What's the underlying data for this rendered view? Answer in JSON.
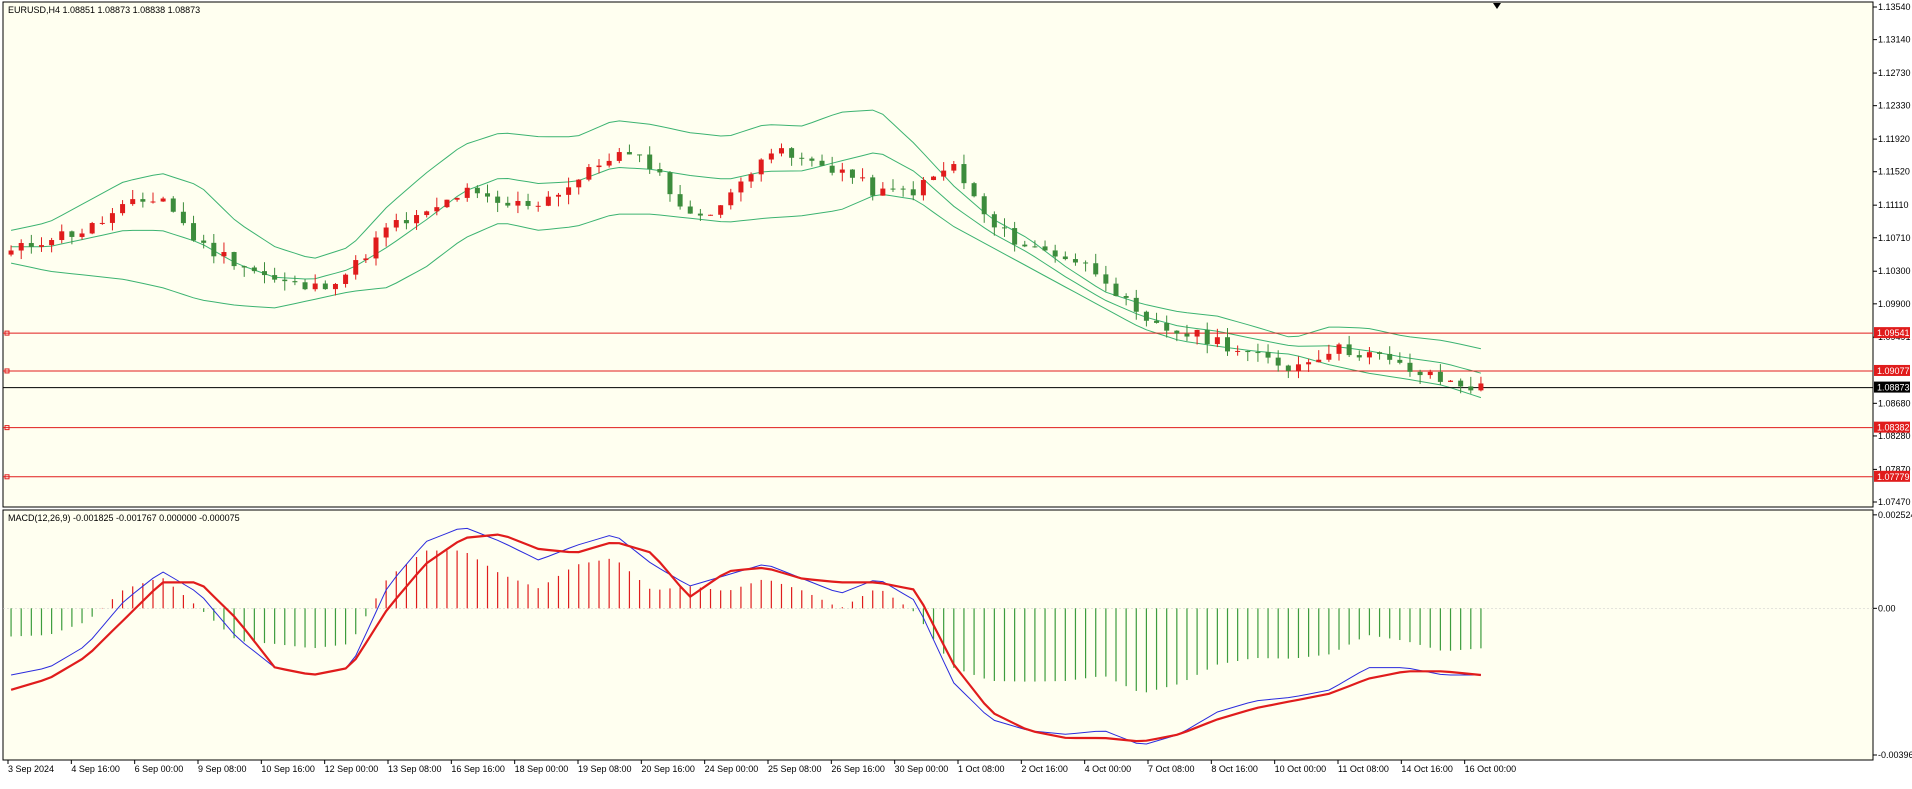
{
  "symbol_info": "EURUSD,H4  1.08851 1.08873 1.08838 1.08873",
  "macd_info": "MACD(12,26,9) -0.001825 -0.001767 0.000000 -0.000075",
  "colors": {
    "background": "#fffff0",
    "axis_background": "#ffffff",
    "frame": "#000000",
    "bull_candle": "#e01c1c",
    "bear_candle": "#3c8c3c",
    "bollinger": "#3cb371",
    "level_line": "#e01c1c",
    "price_line": "#000000",
    "macd_line": "#2b2bdd",
    "signal_line": "#e01c1c",
    "hist_positive": "#e01c1c",
    "hist_negative": "#3c9c3c"
  },
  "chart_data": [
    {
      "type": "candlestick",
      "panel": "price",
      "ylim": [
        1.0747,
        1.1354
      ],
      "y_ticks": [
        "1.13540",
        "1.13140",
        "1.12730",
        "1.12330",
        "1.11920",
        "1.11520",
        "1.11110",
        "1.10710",
        "1.10300",
        "1.09900",
        "1.09491",
        "1.08680",
        "1.08280",
        "1.07870",
        "1.07470"
      ],
      "x_ticks": [
        "3 Sep 2024",
        "4 Sep 16:00",
        "6 Sep 00:00",
        "9 Sep 08:00",
        "10 Sep 16:00",
        "12 Sep 00:00",
        "13 Sep 08:00",
        "16 Sep 16:00",
        "18 Sep 00:00",
        "19 Sep 08:00",
        "20 Sep 16:00",
        "24 Sep 00:00",
        "25 Sep 08:00",
        "26 Sep 16:00",
        "30 Sep 00:00",
        "1 Oct 08:00",
        "2 Oct 16:00",
        "4 Oct 00:00",
        "7 Oct 08:00",
        "8 Oct 16:00",
        "10 Oct 00:00",
        "11 Oct 08:00",
        "14 Oct 16:00",
        "16 Oct 00:00"
      ],
      "key_closes": [
        1.1053,
        1.1072,
        1.108,
        1.1108,
        1.1122,
        1.1062,
        1.1042,
        1.1018,
        1.1008,
        1.103,
        1.1084,
        1.1098,
        1.1128,
        1.111,
        1.1115,
        1.114,
        1.1175,
        1.1162,
        1.1095,
        1.1115,
        1.118,
        1.1165,
        1.1155,
        1.1125,
        1.113,
        1.116,
        1.1085,
        1.106,
        1.1048,
        1.1025,
        1.0965,
        1.0955,
        1.0945,
        1.0925,
        1.0912,
        1.0935,
        1.093,
        1.091,
        1.0895,
        1.0887
      ],
      "levels": [
        1.09541,
        1.09077,
        1.08382,
        1.07779
      ],
      "current_price": 1.08873,
      "series": [
        {
          "name": "Bollinger upper",
          "values": [
            1.108,
            1.109,
            1.1115,
            1.114,
            1.115,
            1.1135,
            1.109,
            1.106,
            1.1045,
            1.106,
            1.111,
            1.115,
            1.1185,
            1.12,
            1.1195,
            1.1195,
            1.1215,
            1.121,
            1.12,
            1.1195,
            1.121,
            1.1208,
            1.1225,
            1.1228,
            1.1185,
            1.1135,
            1.1095,
            1.107,
            1.1035,
            1.1005,
            1.099,
            1.098,
            1.0975,
            1.0962,
            1.0948,
            1.0962,
            1.096,
            1.095,
            1.0945,
            1.0935
          ]
        },
        {
          "name": "Bollinger lower",
          "values": [
            1.104,
            1.103,
            1.1025,
            1.102,
            1.101,
            1.0995,
            1.0988,
            1.0985,
            1.0995,
            1.1005,
            1.101,
            1.1035,
            1.107,
            1.109,
            1.108,
            1.1085,
            1.11,
            1.11,
            1.1095,
            1.109,
            1.1095,
            1.1098,
            1.1105,
            1.1125,
            1.1118,
            1.1085,
            1.106,
            1.1035,
            1.101,
            1.0985,
            1.096,
            1.0945,
            1.0938,
            1.0932,
            1.0928,
            1.0915,
            1.0905,
            1.0898,
            1.089,
            1.0875
          ]
        }
      ]
    },
    {
      "type": "macd",
      "panel": "indicator",
      "ylim": [
        -0.00396,
        0.00252
      ],
      "y_ticks": [
        "0.002524",
        "0.00",
        "-0.00396"
      ],
      "series": [
        {
          "name": "MACD main",
          "values": [
            -0.0018,
            -0.0016,
            -0.001,
            0.0002,
            0.001,
            0.0004,
            -0.0008,
            -0.0016,
            -0.0018,
            -0.0016,
            0.0006,
            0.0018,
            0.0022,
            0.0018,
            0.0013,
            0.0017,
            0.002,
            0.0012,
            0.0006,
            0.0009,
            0.0012,
            0.0008,
            0.0004,
            0.0008,
            0.0002,
            -0.002,
            -0.003,
            -0.0033,
            -0.0034,
            -0.0033,
            -0.0037,
            -0.0034,
            -0.0028,
            -0.0025,
            -0.0024,
            -0.0022,
            -0.0016,
            -0.0016,
            -0.0018,
            -0.0018
          ]
        },
        {
          "name": "Signal",
          "values": [
            -0.0022,
            -0.0019,
            -0.0013,
            -0.0003,
            0.0007,
            0.0007,
            -0.0003,
            -0.0016,
            -0.0018,
            -0.0016,
            0.0,
            0.0012,
            0.0019,
            0.002,
            0.0016,
            0.0015,
            0.0018,
            0.0015,
            0.0003,
            0.001,
            0.0011,
            0.0008,
            0.0007,
            0.0007,
            0.0005,
            -0.0015,
            -0.0028,
            -0.0033,
            -0.0035,
            -0.0035,
            -0.0036,
            -0.0034,
            -0.003,
            -0.0027,
            -0.0025,
            -0.0023,
            -0.0019,
            -0.0017,
            -0.0017,
            -0.0018
          ]
        }
      ]
    }
  ]
}
